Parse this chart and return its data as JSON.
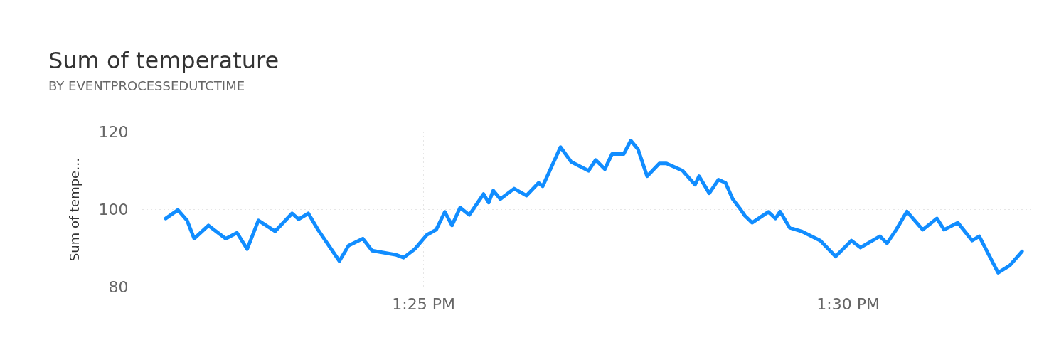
{
  "chart_data": {
    "type": "line",
    "title": "Sum of temperature",
    "subtitle": "BY EVENTPROCESSEDUTCTIME",
    "ylabel": "Sum of tempe…",
    "x": [
      13.3661,
      13.3685,
      13.3703,
      13.3717,
      13.3745,
      13.3779,
      13.3801,
      13.3821,
      13.3843,
      13.3876,
      13.3909,
      13.3922,
      13.3941,
      13.396,
      13.4002,
      13.402,
      13.4048,
      13.4066,
      13.4114,
      13.4128,
      13.415,
      13.4174,
      13.4192,
      13.4209,
      13.4223,
      13.4239,
      13.4257,
      13.4285,
      13.4295,
      13.4304,
      13.4318,
      13.4345,
      13.4369,
      13.4393,
      13.4401,
      13.4436,
      13.4457,
      13.4491,
      13.4505,
      13.4523,
      13.4537,
      13.456,
      13.4574,
      13.4588,
      13.4606,
      13.463,
      13.4644,
      13.4676,
      13.47,
      13.4708,
      13.4728,
      13.4746,
      13.476,
      13.4774,
      13.4788,
      13.4798,
      13.4812,
      13.4844,
      13.4858,
      13.4867,
      13.4886,
      13.4909,
      13.4946,
      13.4976,
      13.5007,
      13.5025,
      13.5063,
      13.5077,
      13.5095,
      13.5116,
      13.5147,
      13.5175,
      13.5189,
      13.5216,
      13.5244,
      13.5258,
      13.5295,
      13.5318,
      13.5342
    ],
    "series": [
      {
        "color": "#118dff",
        "values": [
          97.6,
          99.8,
          97.1,
          92.4,
          95.8,
          92.4,
          93.9,
          89.7,
          97.1,
          94.3,
          98.9,
          97.4,
          98.9,
          94.7,
          86.6,
          90.6,
          92.4,
          89.3,
          88.2,
          87.5,
          89.7,
          93.4,
          94.7,
          99.3,
          95.8,
          100.4,
          98.5,
          103.9,
          101.7,
          104.8,
          102.6,
          105.3,
          103.5,
          106.8,
          105.9,
          116.0,
          112.2,
          109.9,
          112.7,
          110.3,
          114.2,
          114.2,
          117.7,
          115.5,
          108.5,
          111.8,
          111.8,
          109.9,
          106.3,
          108.5,
          104.1,
          107.6,
          106.8,
          102.6,
          100.2,
          98.3,
          96.5,
          99.3,
          97.6,
          99.4,
          95.2,
          94.3,
          91.9,
          87.8,
          91.9,
          90.1,
          93.0,
          91.2,
          94.7,
          99.4,
          94.7,
          97.6,
          94.7,
          96.5,
          91.9,
          93.0,
          83.6,
          85.5,
          89.1
        ]
      }
    ],
    "xlim": [
      13.3615,
      13.536
    ],
    "xticks": [
      {
        "value": 13.416667,
        "label": "1:25 PM"
      },
      {
        "value": 13.5,
        "label": "1:30 PM"
      }
    ],
    "ylim": [
      80,
      120
    ],
    "yticks": [
      80,
      100,
      120
    ],
    "grid": true,
    "line_style": "solid"
  }
}
